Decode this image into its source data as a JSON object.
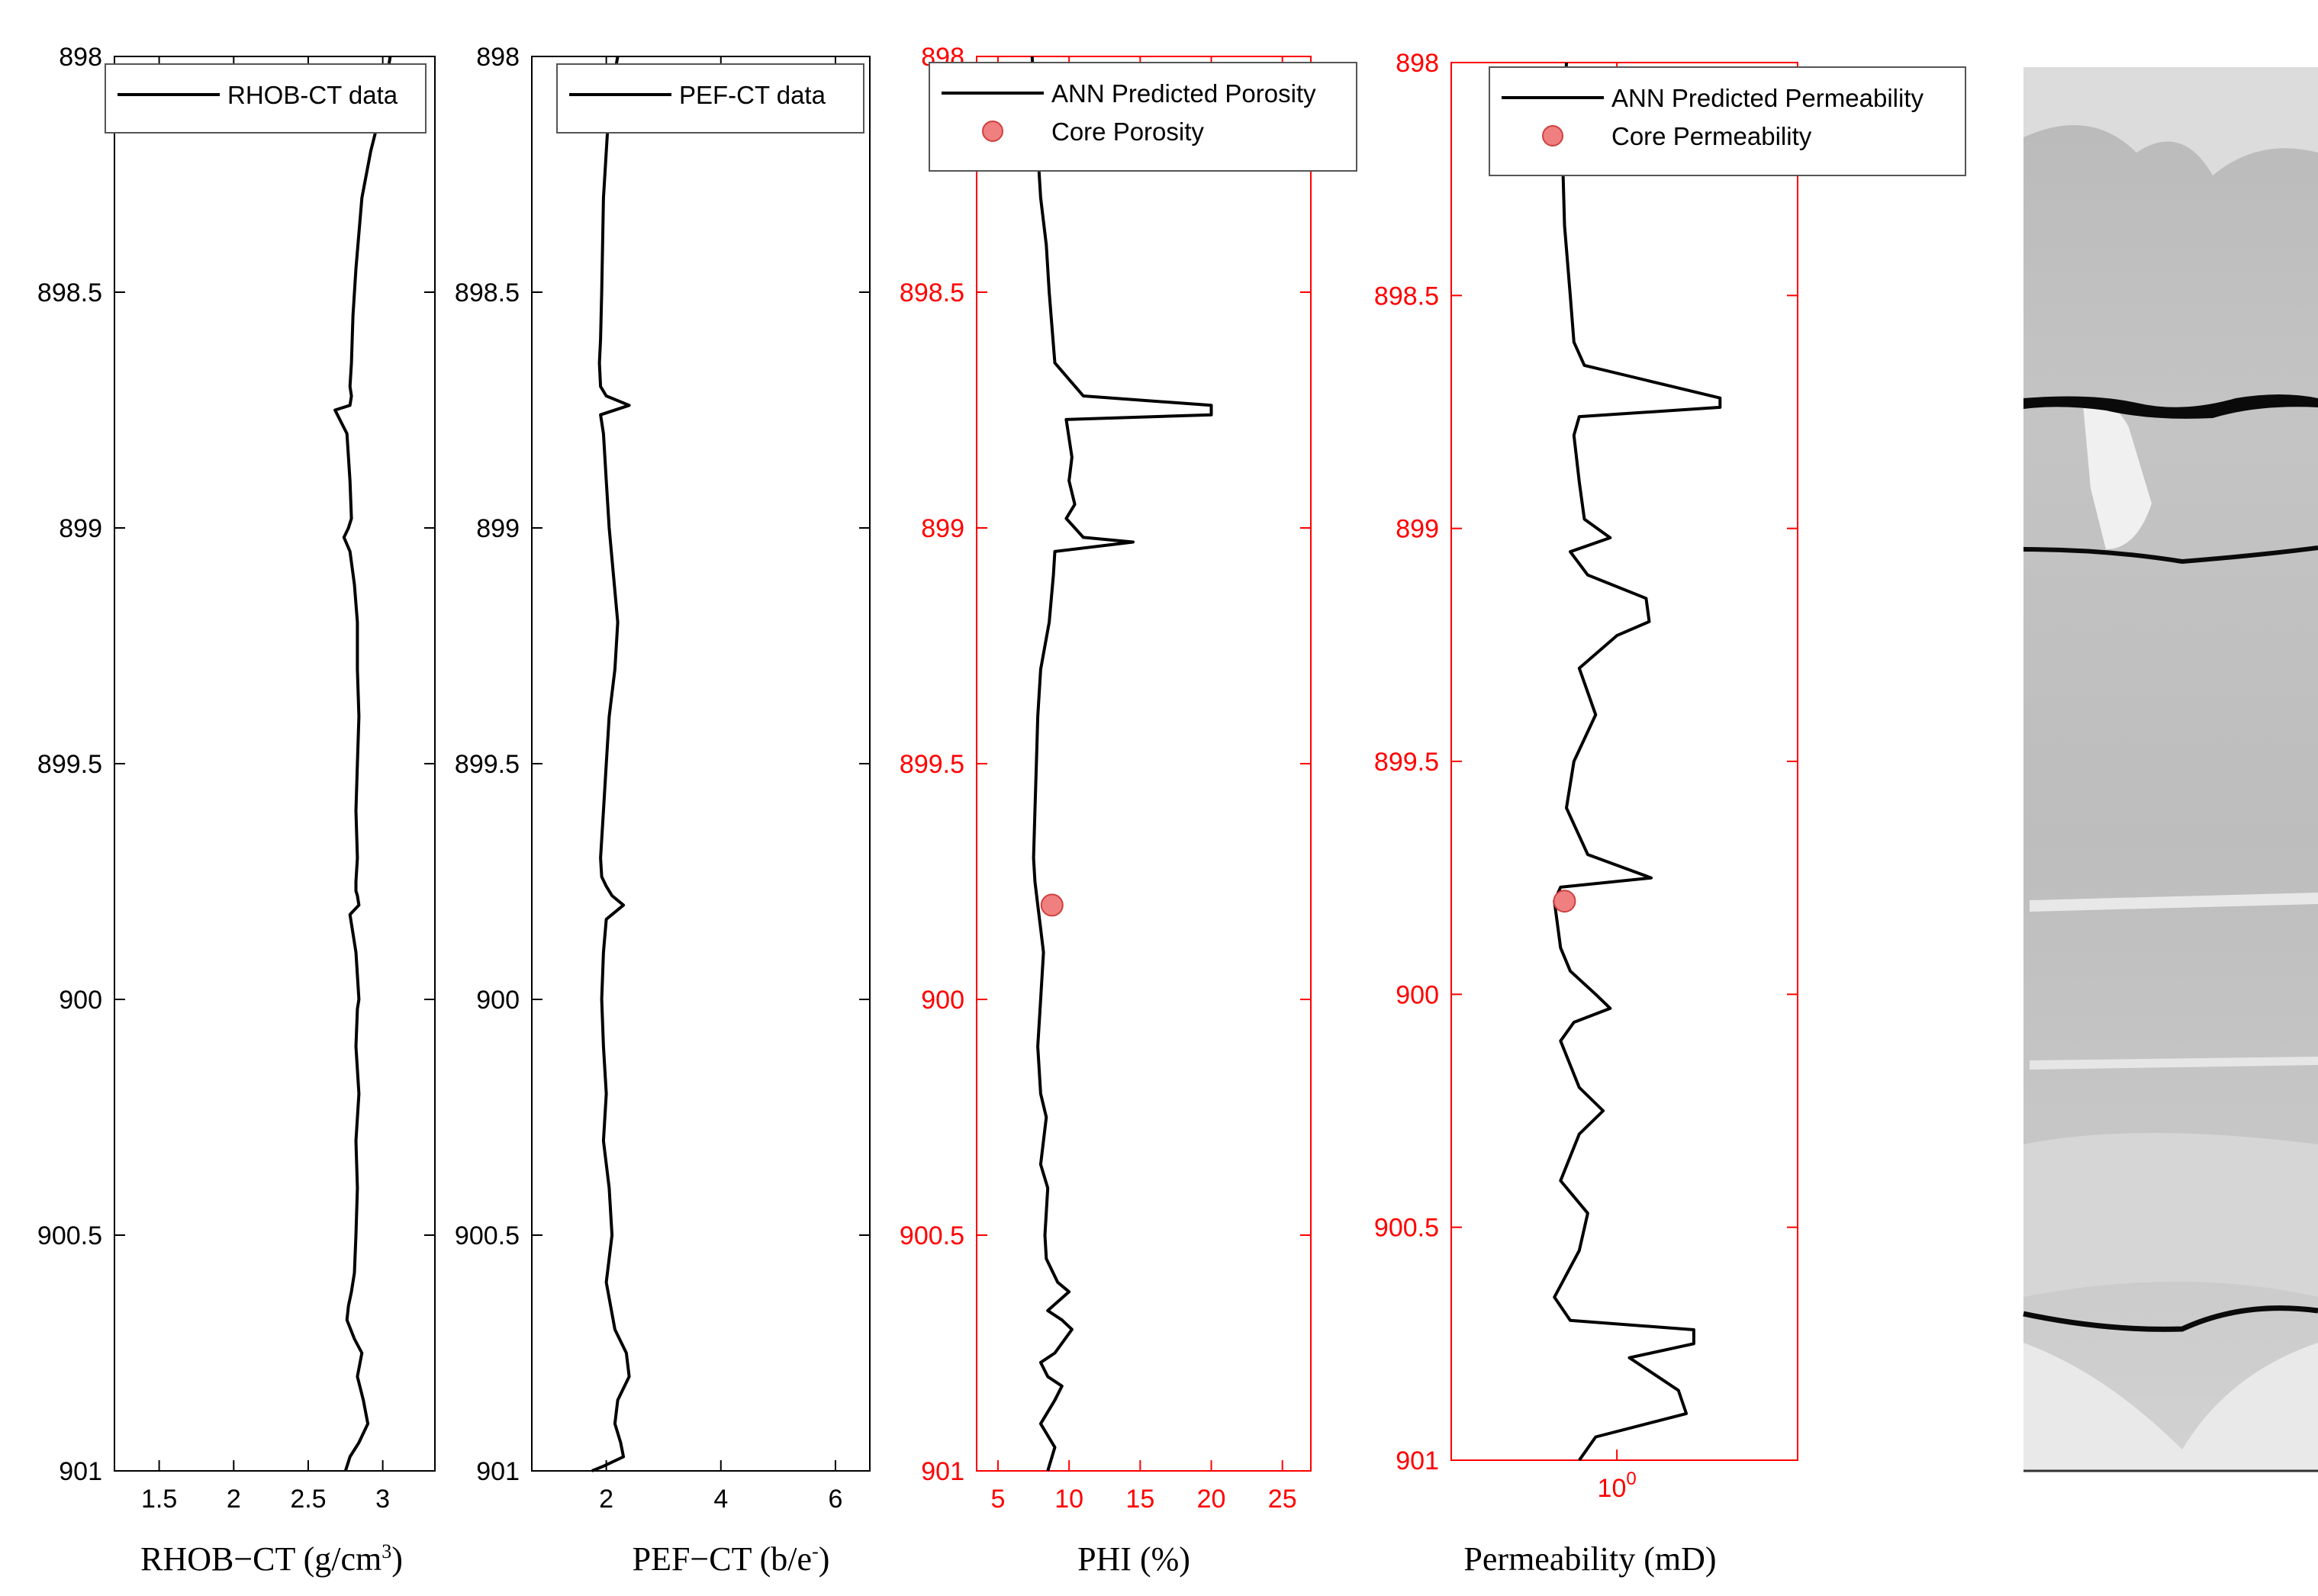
{
  "chart_data": [
    {
      "type": "line",
      "xlabel_main": "RHOB−CT (g/cm",
      "xlabel_sup": "3",
      "xlabel_tail": ")",
      "ylim": [
        898,
        901
      ],
      "xlim": [
        1.2,
        3.35
      ],
      "xticks": [
        1.5,
        2,
        2.5,
        3
      ],
      "xtick_labels": [
        "1.5",
        "2",
        "2.5",
        "3"
      ],
      "yticks": [
        898,
        898.5,
        899,
        899.5,
        900,
        900.5,
        901
      ],
      "ytick_labels": [
        "898",
        "898.5",
        "899",
        "899.5",
        "900",
        "900.5",
        "901"
      ],
      "axis_color": "#000000",
      "legend_location": "top-right",
      "series": [
        {
          "name": "RHOB-CT data",
          "color": "#000000",
          "x": [
            3.05,
            3.0,
            2.92,
            2.86,
            2.82,
            2.8,
            2.79,
            2.78,
            2.79,
            2.78,
            2.68,
            2.76,
            2.78,
            2.79,
            2.77,
            2.74,
            2.78,
            2.81,
            2.83,
            2.83,
            2.84,
            2.83,
            2.82,
            2.83,
            2.82,
            2.82,
            2.83,
            2.84,
            2.78,
            2.82,
            2.84,
            2.83,
            2.82,
            2.84,
            2.82,
            2.83,
            2.82,
            2.81,
            2.79,
            2.77,
            2.76,
            2.81,
            2.86,
            2.83,
            2.87,
            2.9,
            2.84,
            2.78,
            2.75
          ],
          "y": [
            898.0,
            898.1,
            898.2,
            898.3,
            898.45,
            898.55,
            898.65,
            898.7,
            898.72,
            898.74,
            898.75,
            898.8,
            898.9,
            898.98,
            899.0,
            899.02,
            899.05,
            899.12,
            899.2,
            899.3,
            899.4,
            899.5,
            899.6,
            899.7,
            899.75,
            899.77,
            899.78,
            899.8,
            899.82,
            899.9,
            900.0,
            900.02,
            900.1,
            900.2,
            900.3,
            900.4,
            900.5,
            900.58,
            900.62,
            900.65,
            900.68,
            900.72,
            900.75,
            900.8,
            900.85,
            900.9,
            900.94,
            900.97,
            901.0
          ]
        }
      ]
    },
    {
      "type": "line",
      "xlabel_main": "PEF−CT (b/e",
      "xlabel_sup": "-",
      "xlabel_tail": ")",
      "ylim": [
        898,
        901
      ],
      "xlim": [
        0.7,
        6.6
      ],
      "xticks": [
        2,
        4,
        6
      ],
      "xtick_labels": [
        "2",
        "4",
        "6"
      ],
      "yticks": [
        898,
        898.5,
        899,
        899.5,
        900,
        900.5,
        901
      ],
      "ytick_labels": [
        "898",
        "898.5",
        "899",
        "899.5",
        "900",
        "900.5",
        "901"
      ],
      "axis_color": "#000000",
      "legend_location": "top-right",
      "series": [
        {
          "name": "PEF-CT data",
          "color": "#000000",
          "x": [
            2.2,
            2.05,
            1.95,
            1.92,
            1.9,
            1.88,
            1.9,
            2.0,
            2.4,
            1.9,
            1.95,
            2.0,
            2.05,
            2.2,
            2.15,
            2.05,
            2.0,
            1.95,
            1.9,
            1.92,
            2.0,
            2.1,
            2.3,
            2.0,
            1.95,
            1.92,
            1.95,
            2.0,
            1.95,
            2.05,
            2.1,
            2.0,
            2.15,
            2.35,
            2.4,
            2.2,
            2.15,
            2.25,
            2.3,
            1.95,
            1.75
          ],
          "y": [
            898.0,
            898.1,
            898.3,
            898.5,
            898.6,
            898.65,
            898.7,
            898.72,
            898.74,
            898.76,
            898.8,
            898.9,
            899.0,
            899.2,
            899.3,
            899.4,
            899.5,
            899.6,
            899.7,
            899.74,
            899.76,
            899.78,
            899.8,
            899.83,
            899.9,
            900.0,
            900.1,
            900.2,
            900.3,
            900.4,
            900.5,
            900.6,
            900.7,
            900.75,
            900.8,
            900.85,
            900.9,
            900.94,
            900.97,
            900.99,
            901.0
          ]
        }
      ]
    },
    {
      "type": "line",
      "xlabel_main": "PHI (%)",
      "xlabel_sup": "",
      "xlabel_tail": "",
      "ylim": [
        898,
        901
      ],
      "xlim": [
        3.5,
        27
      ],
      "xticks": [
        5,
        10,
        15,
        20,
        25
      ],
      "xtick_labels": [
        "5",
        "10",
        "15",
        "20",
        "25"
      ],
      "yticks": [
        898,
        898.5,
        899,
        899.5,
        900,
        900.5,
        901
      ],
      "ytick_labels": [
        "898",
        "898.5",
        "899",
        "899.5",
        "900",
        "900.5",
        "901"
      ],
      "axis_color": "#ff0000",
      "legend_location": "top-right",
      "series": [
        {
          "name": "ANN Predicted Porosity",
          "color": "#000000",
          "x": [
            7.4,
            7.6,
            7.8,
            8.0,
            8.4,
            8.6,
            9.0,
            11.0,
            20.0,
            20.0,
            9.8,
            10.2,
            10.0,
            10.4,
            9.8,
            11.0,
            14.5,
            9.0,
            8.9,
            8.6,
            8.0,
            7.8,
            7.7,
            7.6,
            7.5,
            7.6,
            7.8,
            8.0,
            8.2,
            8.0,
            7.8,
            8.0,
            8.4,
            8.2,
            8.0,
            8.5,
            8.3,
            8.4,
            9.2,
            10.0,
            8.5,
            9.5,
            10.2,
            9.0,
            8.0,
            8.5,
            9.5,
            9.0,
            8.0,
            9.0,
            8.5
          ],
          "y": [
            898.0,
            898.1,
            898.2,
            898.3,
            898.4,
            898.5,
            898.65,
            898.72,
            898.74,
            898.76,
            898.77,
            898.85,
            898.9,
            898.95,
            898.98,
            899.02,
            899.03,
            899.05,
            899.1,
            899.2,
            899.3,
            899.4,
            899.5,
            899.6,
            899.7,
            899.75,
            899.8,
            899.85,
            899.9,
            900.0,
            900.1,
            900.2,
            900.25,
            900.3,
            900.35,
            900.4,
            900.5,
            900.55,
            900.6,
            900.62,
            900.66,
            900.68,
            900.7,
            900.75,
            900.77,
            900.8,
            900.82,
            900.85,
            900.9,
            900.95,
            901.0
          ]
        }
      ],
      "points": [
        {
          "name": "Core Porosity",
          "color": "#f08080",
          "x": [
            8.8
          ],
          "y": [
            899.8
          ]
        }
      ]
    },
    {
      "type": "line",
      "xlabel_main": "Permeability (mD)",
      "xlabel_sup": "",
      "xlabel_tail": "",
      "ylim": [
        898,
        901
      ],
      "xlim": [
        -0.55,
        0.6
      ],
      "xscale": "log",
      "xticks": [
        0
      ],
      "xtick_labels": [
        "10"
      ],
      "xtick_sup": "0",
      "yticks": [
        898,
        898.5,
        899,
        899.5,
        900,
        900.5,
        901
      ],
      "ytick_labels": [
        "898",
        "898.5",
        "899",
        "899.5",
        "900",
        "900.5",
        "901"
      ],
      "axis_color": "#ff0000",
      "legend_location": "top-right",
      "series": [
        {
          "name": "ANN Predicted Permeability",
          "color": "#000000",
          "x": [
            0.68,
            0.67,
            0.66,
            0.67,
            0.7,
            0.72,
            0.78,
            2.2,
            2.2,
            0.75,
            0.72,
            0.75,
            0.78,
            0.95,
            0.7,
            0.8,
            1.25,
            1.28,
            1.0,
            0.75,
            0.85,
            0.72,
            0.68,
            0.8,
            1.3,
            0.65,
            0.62,
            0.65,
            0.7,
            0.85,
            0.95,
            0.72,
            0.65,
            0.75,
            0.9,
            0.75,
            0.65,
            0.8,
            0.75,
            0.62,
            0.7,
            1.8,
            1.8,
            1.1,
            1.6,
            1.7,
            0.85,
            0.75
          ],
          "y": [
            898.0,
            898.1,
            898.2,
            898.35,
            898.5,
            898.6,
            898.65,
            898.72,
            898.74,
            898.76,
            898.8,
            898.9,
            898.98,
            899.02,
            899.05,
            899.1,
            899.15,
            899.2,
            899.23,
            899.3,
            899.4,
            899.5,
            899.6,
            899.7,
            899.75,
            899.77,
            899.8,
            899.9,
            899.95,
            900.0,
            900.03,
            900.06,
            900.1,
            900.2,
            900.25,
            900.3,
            900.4,
            900.47,
            900.55,
            900.65,
            900.7,
            900.72,
            900.75,
            900.78,
            900.85,
            900.9,
            900.95,
            901.0
          ]
        }
      ],
      "points": [
        {
          "name": "Core Permeability",
          "color": "#f08080",
          "x": [
            0.67
          ],
          "y": [
            899.8
          ]
        }
      ]
    }
  ]
}
